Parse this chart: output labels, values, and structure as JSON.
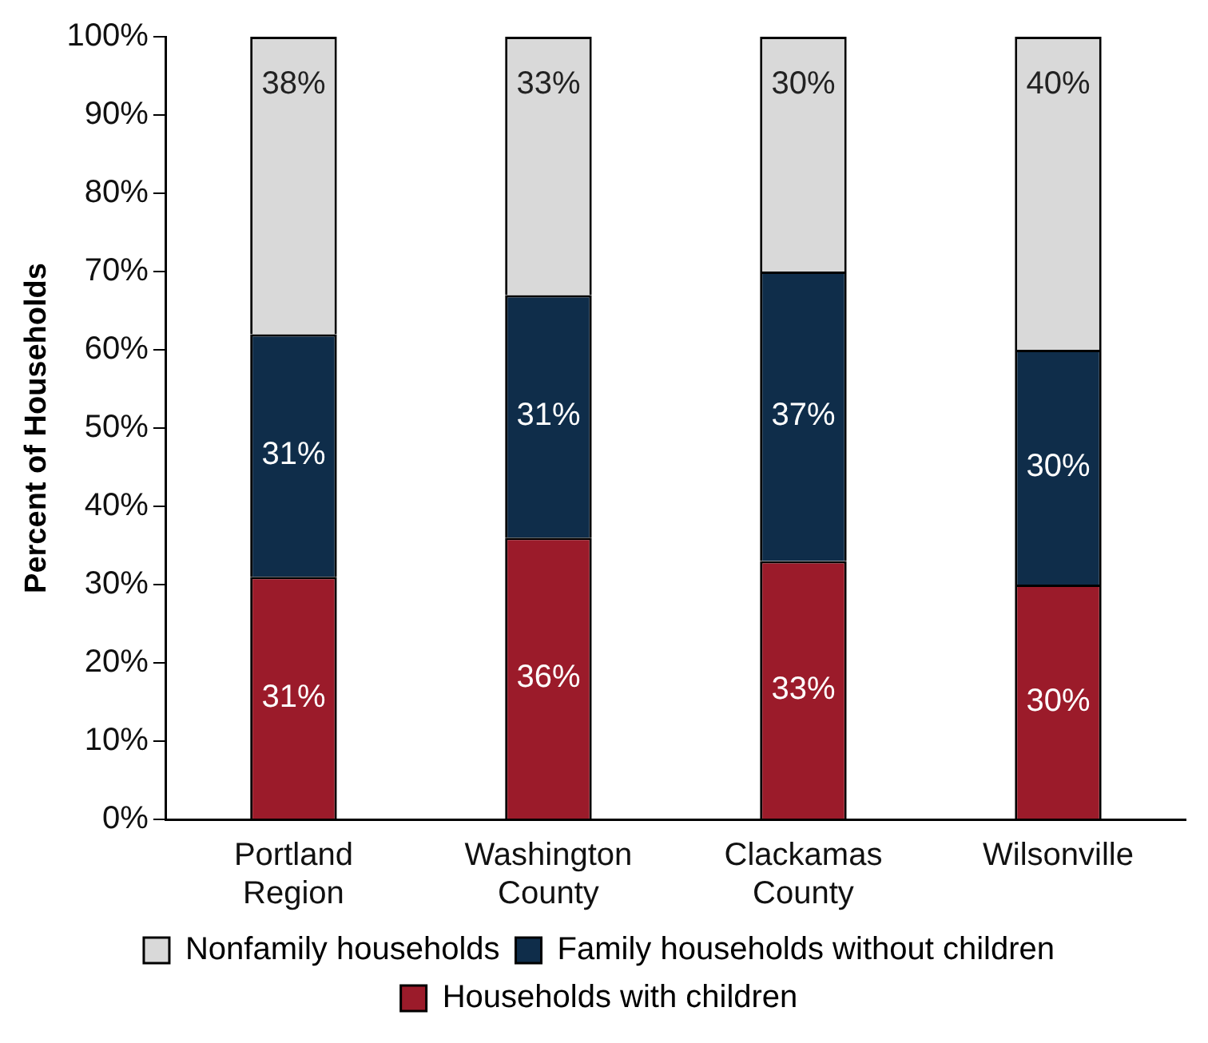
{
  "chart_data": {
    "type": "bar",
    "stacked": true,
    "ylabel": "Percent of Households",
    "categories": [
      "Portland Region",
      "Washington County",
      "Clackamas County",
      "Wilsonville"
    ],
    "series": [
      {
        "name": "Households with children",
        "color": "#9b1b2a",
        "values": [
          31,
          36,
          33,
          30
        ],
        "value_labels": [
          "31%",
          "36%",
          "33%",
          "30%"
        ]
      },
      {
        "name": "Family households without children",
        "color": "#0f2d4a",
        "values": [
          31,
          31,
          37,
          30
        ],
        "value_labels": [
          "31%",
          "31%",
          "37%",
          "30%"
        ]
      },
      {
        "name": "Nonfamily households",
        "color": "#d9d9d9",
        "values": [
          38,
          33,
          30,
          40
        ],
        "value_labels": [
          "38%",
          "33%",
          "30%",
          "40%"
        ]
      }
    ],
    "ylim": [
      0,
      100
    ],
    "yticks": [
      {
        "value": 0,
        "label": "0%"
      },
      {
        "value": 10,
        "label": "10%"
      },
      {
        "value": 20,
        "label": "20%"
      },
      {
        "value": 30,
        "label": "30%"
      },
      {
        "value": 40,
        "label": "40%"
      },
      {
        "value": 50,
        "label": "50%"
      },
      {
        "value": 60,
        "label": "60%"
      },
      {
        "value": 70,
        "label": "70%"
      },
      {
        "value": 80,
        "label": "80%"
      },
      {
        "value": 90,
        "label": "90%"
      },
      {
        "value": 100,
        "label": "100%"
      }
    ],
    "grid": false,
    "legend": "bottom"
  }
}
